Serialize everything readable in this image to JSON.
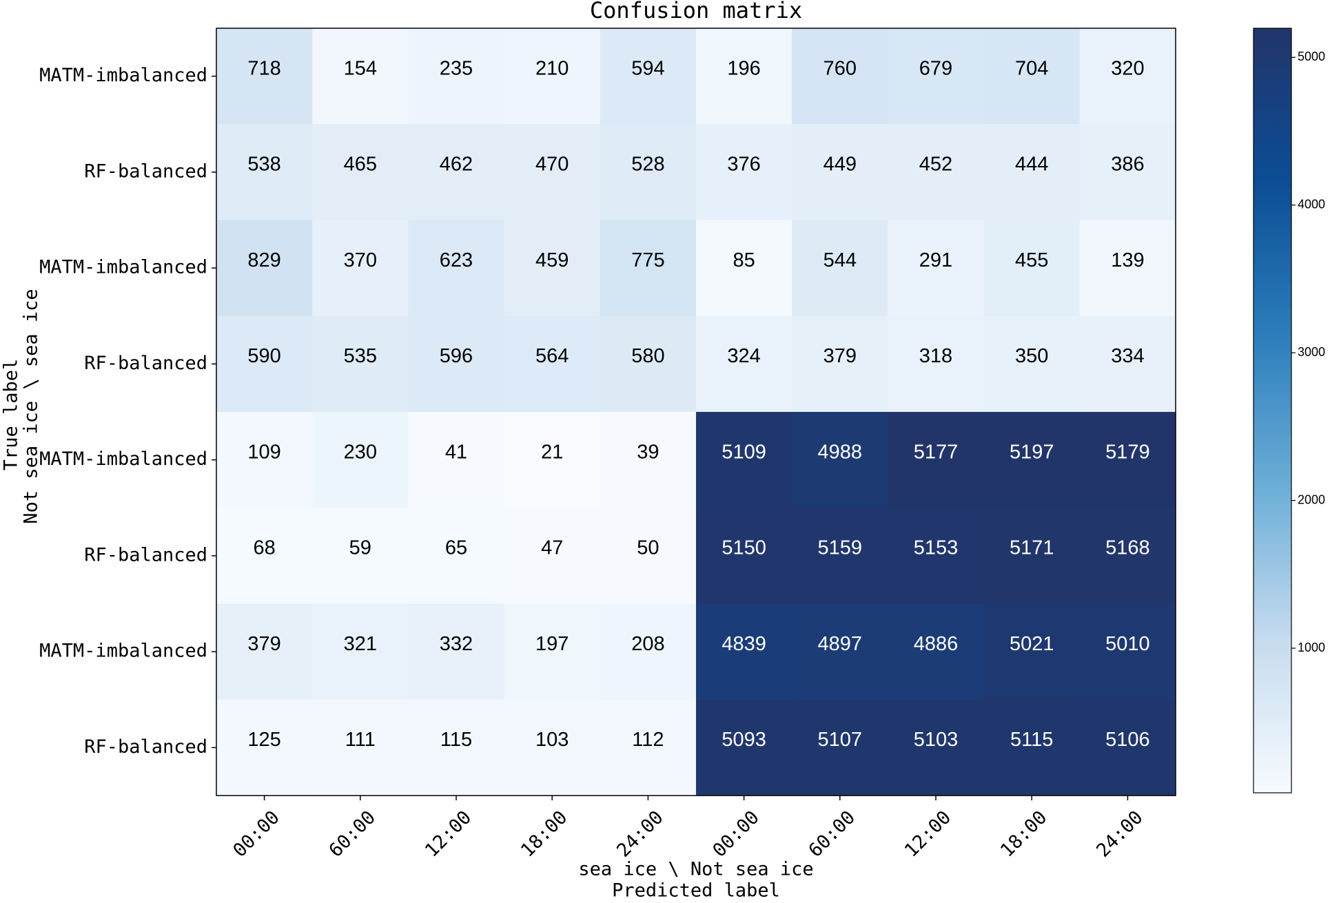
{
  "chart_data": {
    "type": "heatmap",
    "title": "Confusion matrix",
    "xlabel": "Predicted label",
    "xsublabel": "sea ice \\ Not sea ice",
    "ylabel": "True label",
    "ysublabel": "Not sea ice \\ sea ice",
    "x_categories": [
      "00:00",
      "60:00",
      "12:00",
      "18:00",
      "24:00",
      "00:00",
      "60:00",
      "12:00",
      "18:00",
      "24:00"
    ],
    "y_categories": [
      "MATM-imbalanced",
      "RF-balanced",
      "MATM-imbalanced",
      "RF-balanced",
      "MATM-imbalanced",
      "RF-balanced",
      "MATM-imbalanced",
      "RF-balanced"
    ],
    "values": [
      [
        718,
        154,
        235,
        210,
        594,
        196,
        760,
        679,
        704,
        320
      ],
      [
        538,
        465,
        462,
        470,
        528,
        376,
        449,
        452,
        444,
        386
      ],
      [
        829,
        370,
        623,
        459,
        775,
        85,
        544,
        291,
        455,
        139
      ],
      [
        590,
        535,
        596,
        564,
        580,
        324,
        379,
        318,
        350,
        334
      ],
      [
        109,
        230,
        41,
        21,
        39,
        5109,
        4988,
        5177,
        5197,
        5179
      ],
      [
        68,
        59,
        65,
        47,
        50,
        5150,
        5159,
        5153,
        5171,
        5168
      ],
      [
        379,
        321,
        332,
        197,
        208,
        4839,
        4897,
        4886,
        5021,
        5010
      ],
      [
        125,
        111,
        115,
        103,
        112,
        5093,
        5107,
        5103,
        5115,
        5106
      ]
    ],
    "clim": [
      21,
      5197
    ],
    "cticks": [
      1000,
      2000,
      3000,
      4000,
      5000
    ],
    "colormap": [
      "#f7fbff",
      "#c6dbef",
      "#6baed6",
      "#2c7dbb",
      "#0b4d96",
      "#22356a"
    ]
  }
}
